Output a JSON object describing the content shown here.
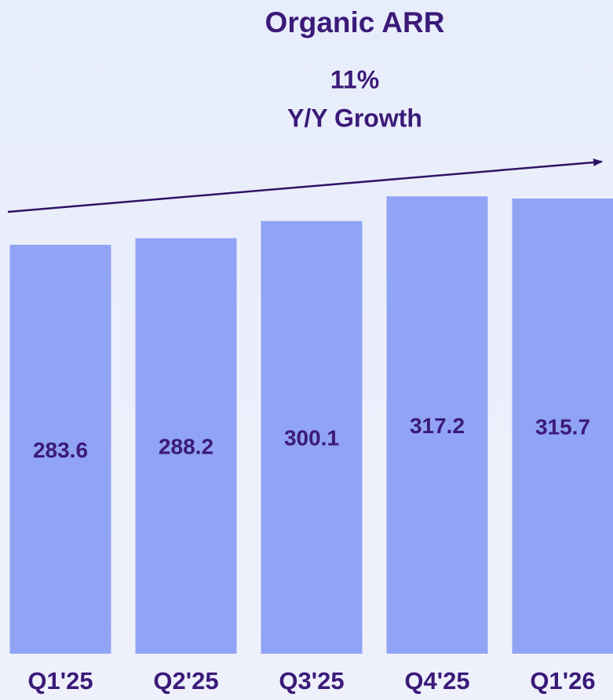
{
  "chart_data": {
    "type": "bar",
    "title": "Organic ARR",
    "annotations": [
      "11%",
      "Y/Y Growth"
    ],
    "categories": [
      "Q1'25",
      "Q2'25",
      "Q3'25",
      "Q4'25",
      "Q1'26"
    ],
    "values": [
      283.6,
      288.2,
      300.1,
      317.2,
      315.7
    ],
    "color": "#91a3f5",
    "ylim": [
      0,
      350
    ]
  }
}
